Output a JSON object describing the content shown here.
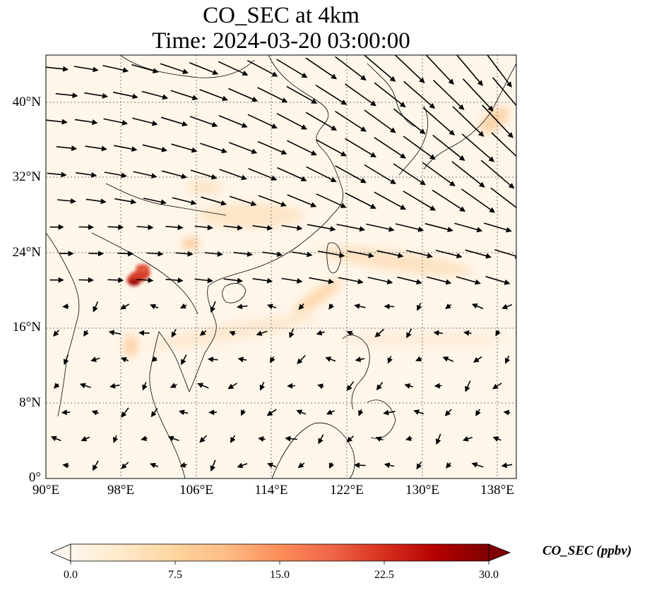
{
  "title": "CO_SEC at 4km",
  "time": "Time: 2024-03-20 03:00:00",
  "colorbar": {
    "label": "CO_SEC (ppbv)",
    "ticks": [
      "0.0",
      "7.5",
      "15.0",
      "22.5",
      "30.0"
    ],
    "min": 0,
    "max": 30,
    "colormap": "OrRd",
    "colors": [
      "#fff7ec",
      "#fee8c8",
      "#fdd49e",
      "#fdbb84",
      "#fc8d59",
      "#ef6548",
      "#d7301f",
      "#b30000",
      "#7f0000"
    ]
  },
  "map": {
    "projection": "PlateCarree",
    "lon_range": [
      90,
      140
    ],
    "lat_range": [
      0,
      45
    ],
    "lon_ticks": [
      "90°E",
      "98°E",
      "106°E",
      "114°E",
      "122°E",
      "130°E",
      "138°E"
    ],
    "lat_ticks": [
      "0°",
      "8°N",
      "16°N",
      "24°N",
      "32°N",
      "40°N"
    ],
    "gridlines": "dotted",
    "overlay": "wind vectors (quiver)"
  },
  "chart_data": {
    "type": "heatmap",
    "variable": "CO_SEC",
    "units": "ppbv",
    "level": "4km",
    "time": "2024-03-20 03:00:00",
    "xlim": [
      90,
      140
    ],
    "ylim": [
      0,
      45
    ],
    "range": [
      0,
      30
    ],
    "hotspots": [
      {
        "lon": 99.5,
        "lat": 22,
        "value": 28
      },
      {
        "lon": 100.5,
        "lat": 23,
        "value": 18
      },
      {
        "lon": 108,
        "lat": 25,
        "value": 6
      },
      {
        "lon": 110,
        "lat": 28,
        "value": 5
      },
      {
        "lon": 118,
        "lat": 19,
        "value": 6
      },
      {
        "lon": 126,
        "lat": 23,
        "value": 5
      },
      {
        "lon": 137,
        "lat": 38,
        "value": 6
      },
      {
        "lon": 99,
        "lat": 14,
        "value": 7
      }
    ]
  }
}
